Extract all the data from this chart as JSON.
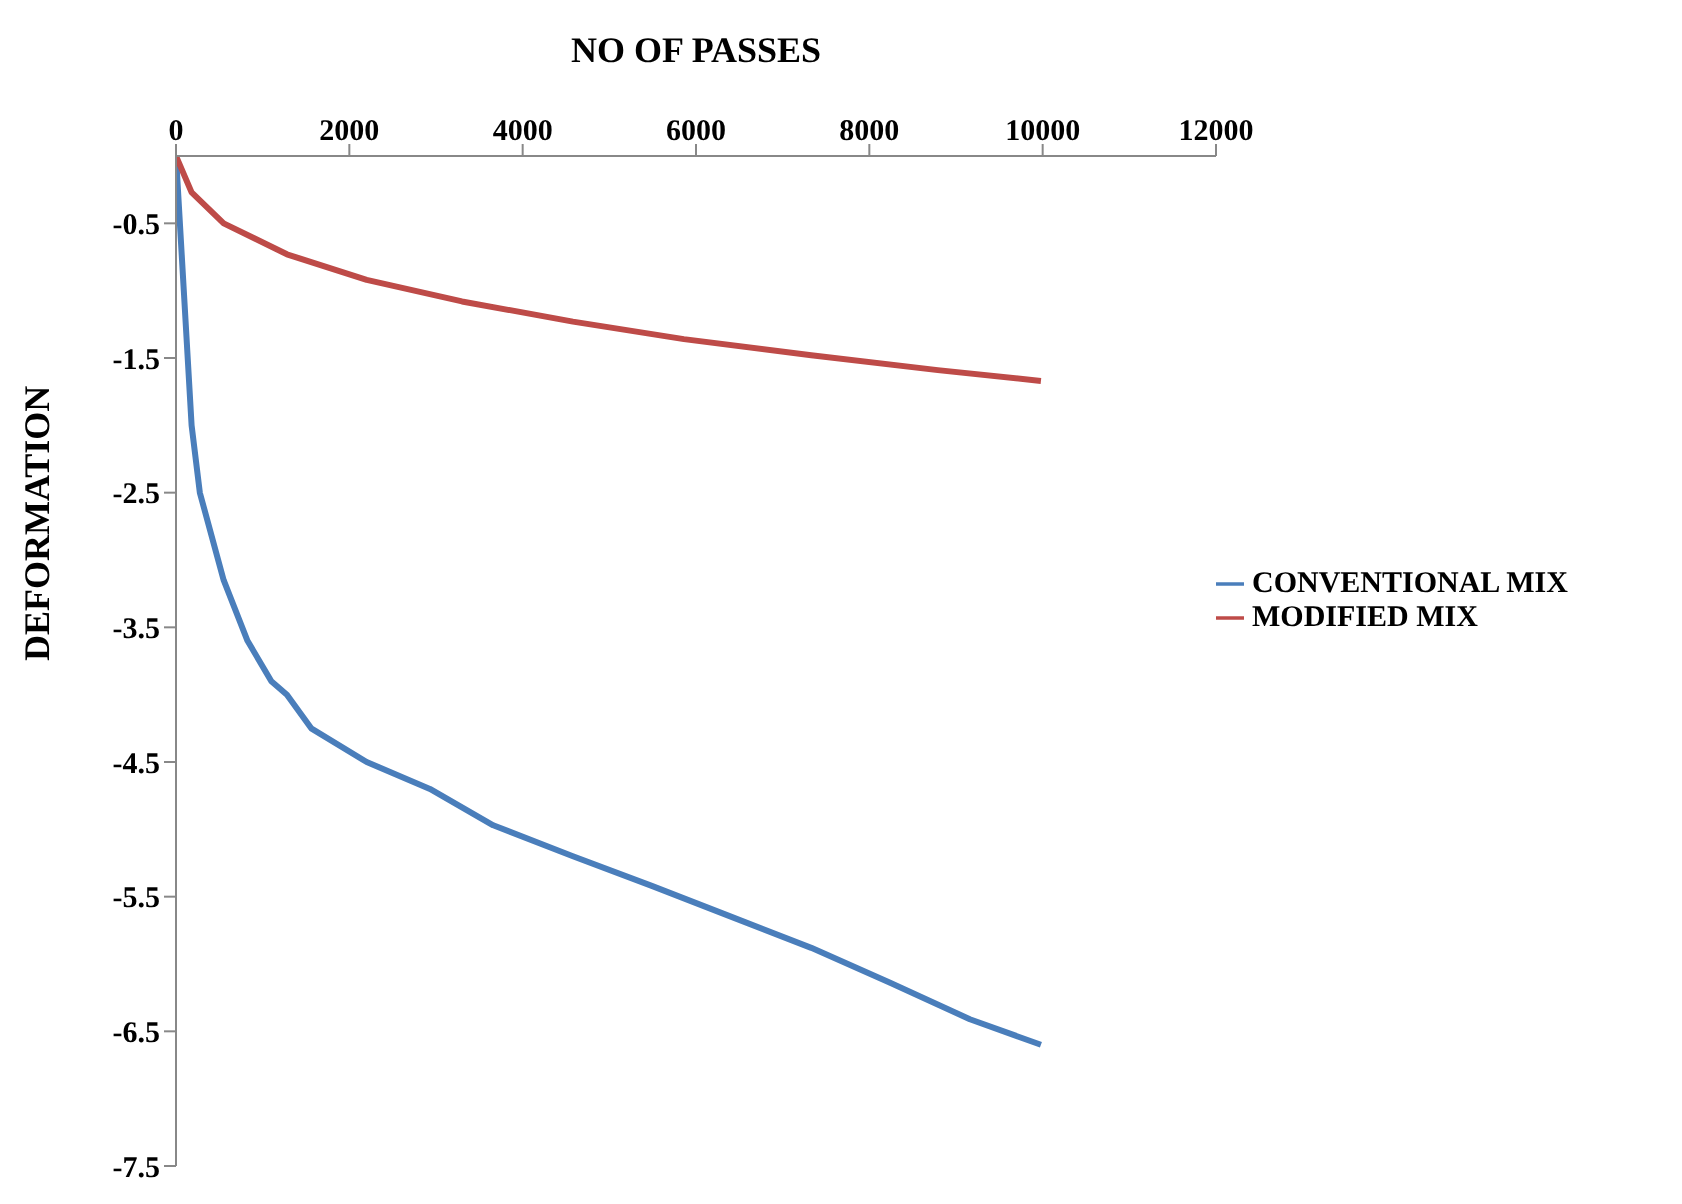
{
  "chart_data": {
    "type": "line",
    "xlabel": "NO OF PASSES",
    "ylabel": "DEFORMATION",
    "xlim": [
      0,
      12000
    ],
    "xticks": [
      0,
      2000,
      4000,
      6000,
      8000,
      10000,
      12000
    ],
    "ylim": [
      -7.5,
      0
    ],
    "yticks": [
      -0.5,
      -1.5,
      -2.5,
      -3.5,
      -4.5,
      -5.5,
      -6.5,
      -7.5
    ],
    "grid": false,
    "legend": "right",
    "marker": "none",
    "line_style": "solid",
    "series": [
      {
        "name": "CONVENTIONAL MIX",
        "color": "#4a7ebb",
        "x": [
          0,
          90,
          180,
          275,
          550,
          825,
          1100,
          1280,
          1560,
          2200,
          2930,
          3660,
          4580,
          5490,
          6410,
          7330,
          8240,
          9160,
          9980
        ],
        "values": [
          0,
          -1.0,
          -2.0,
          -2.5,
          -3.15,
          -3.6,
          -3.9,
          -4.0,
          -4.25,
          -4.5,
          -4.7,
          -4.97,
          -5.2,
          -5.42,
          -5.65,
          -5.88,
          -6.14,
          -6.41,
          -6.6
        ]
      },
      {
        "name": "MODIFIED MIX",
        "color": "#be4b48",
        "x": [
          0,
          180,
          550,
          1280,
          2200,
          3300,
          4580,
          5860,
          7330,
          8790,
          9980
        ],
        "values": [
          0,
          -0.27,
          -0.5,
          -0.73,
          -0.92,
          -1.08,
          -1.23,
          -1.36,
          -1.48,
          -1.59,
          -1.67
        ]
      }
    ]
  }
}
